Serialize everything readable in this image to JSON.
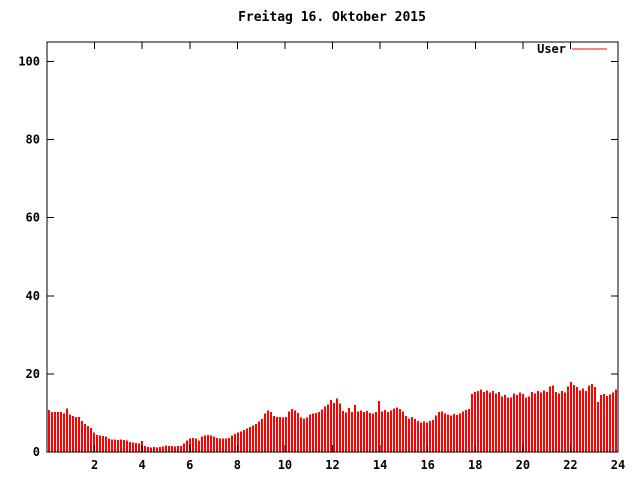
{
  "chart_data": {
    "type": "bar",
    "title": "Freitag 16. Oktober 2015",
    "xlabel": "",
    "ylabel": "",
    "x_unit": "hour of day",
    "xlim": [
      0,
      24
    ],
    "ylim": [
      0,
      105
    ],
    "x_ticks": [
      2,
      4,
      6,
      8,
      10,
      12,
      14,
      16,
      18,
      20,
      22,
      24
    ],
    "y_ticks": [
      0,
      20,
      40,
      60,
      80,
      100
    ],
    "grid": false,
    "legend_position": "top-right-inside",
    "colors": {
      "series": "#ff0000",
      "text": "#000000",
      "border": "#000000",
      "background": "#ffffff"
    },
    "x_start_hours": 0.06,
    "x_step_hours": 0.1263,
    "series": [
      {
        "name": "User",
        "color": "#ff0000",
        "values": [
          10.8,
          10.2,
          10.3,
          10.2,
          10.3,
          9.8,
          11.2,
          9.6,
          9.2,
          9.0,
          9.0,
          8.0,
          7.2,
          6.6,
          6.2,
          5.0,
          4.4,
          4.2,
          4.1,
          4.0,
          3.4,
          3.2,
          3.2,
          3.1,
          3.2,
          3.1,
          3.0,
          2.6,
          2.4,
          2.3,
          2.2,
          2.8,
          1.6,
          1.3,
          1.2,
          1.3,
          1.2,
          1.3,
          1.4,
          1.7,
          1.6,
          1.5,
          1.4,
          1.5,
          1.6,
          2.2,
          3.0,
          3.4,
          3.6,
          3.4,
          3.0,
          4.0,
          4.2,
          4.3,
          4.2,
          4.0,
          3.6,
          3.5,
          3.4,
          3.5,
          3.6,
          4.2,
          4.6,
          5.0,
          5.2,
          5.6,
          6.0,
          6.4,
          6.8,
          7.2,
          7.8,
          8.4,
          9.8,
          10.6,
          10.2,
          9.2,
          8.9,
          9.0,
          8.8,
          9.0,
          10.4,
          11.0,
          10.6,
          10.0,
          8.8,
          8.6,
          8.8,
          9.6,
          9.8,
          10.0,
          10.2,
          10.9,
          11.6,
          12.2,
          13.3,
          12.6,
          13.7,
          12.4,
          10.5,
          10.1,
          11.3,
          10.2,
          12.0,
          10.4,
          10.6,
          10.3,
          10.5,
          10.0,
          9.8,
          10.2,
          13.0,
          10.4,
          10.8,
          10.2,
          10.6,
          11.2,
          11.4,
          11.0,
          10.4,
          9.2,
          8.6,
          8.9,
          8.4,
          8.0,
          7.6,
          7.8,
          7.5,
          7.9,
          8.2,
          9.4,
          10.2,
          10.4,
          9.8,
          9.6,
          9.4,
          9.7,
          9.5,
          9.8,
          10.4,
          10.8,
          11.0,
          14.8,
          15.4,
          15.6,
          16.0,
          15.4,
          15.8,
          15.2,
          15.6,
          15.0,
          15.4,
          14.2,
          14.6,
          14.0,
          13.9,
          15.0,
          14.6,
          15.2,
          14.8,
          14.0,
          14.2,
          15.4,
          15.0,
          15.6,
          15.2,
          15.8,
          15.4,
          16.8,
          17.0,
          15.4,
          15.0,
          15.6,
          15.2,
          16.8,
          17.9,
          17.2,
          16.6,
          15.8,
          16.2,
          15.6,
          17.0,
          17.4,
          16.6,
          12.8,
          14.6,
          14.9,
          14.4,
          14.7,
          15.2,
          16.0
        ]
      }
    ]
  }
}
